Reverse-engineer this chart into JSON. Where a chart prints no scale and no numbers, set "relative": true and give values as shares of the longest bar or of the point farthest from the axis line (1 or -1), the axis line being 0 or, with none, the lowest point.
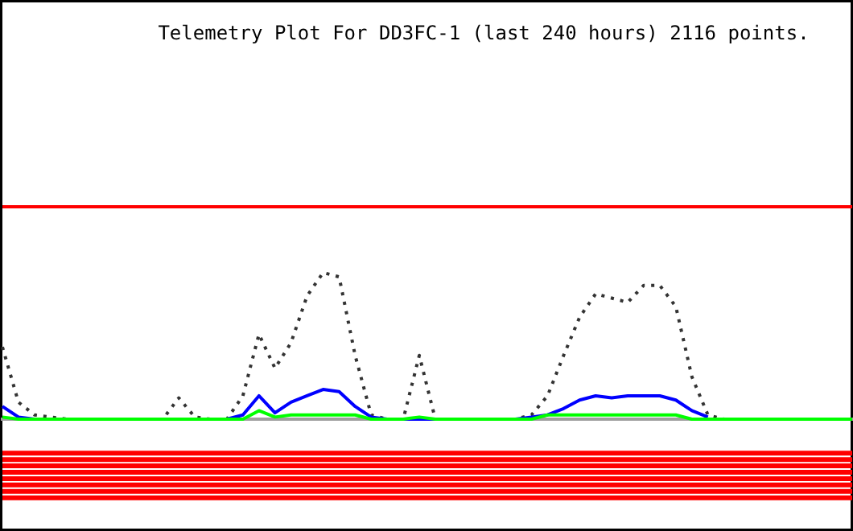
{
  "chart_data": {
    "type": "line",
    "title": "Telemetry Plot For DD3FC-1 (last 240 hours) 2116 points.",
    "relative": true,
    "categories": [
      null,
      null,
      null,
      null,
      null,
      null,
      null,
      null,
      null,
      null,
      null,
      null,
      null,
      null,
      null,
      null,
      null,
      null,
      null,
      null,
      null,
      null,
      null,
      null,
      null,
      null,
      null,
      null,
      null,
      null,
      null,
      null,
      null,
      null,
      null,
      null,
      null,
      null,
      null,
      null,
      null,
      null,
      null,
      null,
      null,
      null,
      null,
      null,
      null,
      null,
      null,
      null,
      null,
      null
    ],
    "series": [
      {
        "color": "#ff0000",
        "values": [
          1,
          1,
          1,
          1,
          1,
          1,
          1,
          1,
          1,
          1,
          1,
          1,
          1,
          1,
          1,
          1,
          1,
          1,
          1,
          1,
          1,
          1,
          1,
          1,
          1,
          1,
          1,
          1,
          1,
          1,
          1,
          1,
          1,
          1,
          1,
          1,
          1,
          1,
          1,
          1,
          1,
          1,
          1,
          1,
          1,
          1,
          1,
          1,
          1,
          1,
          1,
          1,
          1,
          1
        ]
      },
      {
        "line_style": "dotted",
        "color": "#333333",
        "values": [
          0.34,
          0.08,
          0.02,
          0.01,
          0,
          0,
          0,
          0,
          0,
          0,
          0,
          0.1,
          0.01,
          0,
          0,
          0.11,
          0.4,
          0.24,
          0.36,
          0.58,
          0.69,
          0.67,
          0.3,
          0.02,
          0,
          0,
          0.3,
          0,
          0,
          0,
          0,
          0,
          0,
          0.02,
          0.11,
          0.3,
          0.48,
          0.59,
          0.57,
          0.55,
          0.63,
          0.63,
          0.53,
          0.2,
          0.02,
          0,
          0,
          0,
          0,
          0,
          0,
          0,
          0,
          0
        ]
      },
      {
        "color": "#0000ff",
        "values": [
          0.06,
          0.01,
          0,
          0,
          0,
          0,
          0,
          0,
          0,
          0,
          0,
          0,
          0,
          0,
          0,
          0.02,
          0.11,
          0.03,
          0.08,
          0.11,
          0.14,
          0.13,
          0.06,
          0.01,
          0,
          0,
          0,
          0,
          0,
          0,
          0,
          0,
          0,
          0.01,
          0.02,
          0.05,
          0.09,
          0.11,
          0.1,
          0.11,
          0.11,
          0.11,
          0.09,
          0.04,
          0.01,
          null,
          null,
          null,
          null,
          null,
          null,
          null,
          null,
          null
        ]
      },
      {
        "color": "#00ff00",
        "values": [
          0.01,
          0,
          0,
          0,
          0,
          0,
          0,
          0,
          0,
          0,
          0,
          0,
          0,
          0,
          0,
          0,
          0.04,
          0.01,
          0.02,
          0.02,
          0.02,
          0.02,
          0.02,
          0,
          0,
          0,
          0.01,
          0,
          0,
          0,
          0,
          0,
          0,
          0,
          0.02,
          0.02,
          0.02,
          0.02,
          0.02,
          0.02,
          0.02,
          0.02,
          0.02,
          0,
          0,
          0,
          0,
          0,
          0,
          0,
          0,
          0,
          0,
          0
        ]
      },
      {
        "color": "#ff0000",
        "values": [
          -0.16,
          -0.16,
          -0.16,
          -0.16,
          -0.16,
          -0.16,
          -0.16,
          -0.16,
          -0.16,
          -0.16,
          -0.16,
          -0.16,
          -0.16,
          -0.16,
          -0.16,
          -0.16,
          -0.16,
          -0.16,
          -0.16,
          -0.16,
          -0.16,
          -0.16,
          -0.16,
          -0.16,
          -0.16,
          -0.16,
          -0.16,
          -0.16,
          -0.16,
          -0.16,
          -0.16,
          -0.16,
          -0.16,
          -0.16,
          -0.16,
          -0.16,
          -0.16,
          -0.16,
          -0.16,
          -0.16,
          -0.16,
          -0.16,
          -0.16,
          -0.16,
          -0.16,
          -0.16,
          -0.16,
          -0.16,
          -0.16,
          -0.16,
          -0.16,
          -0.16,
          -0.16,
          -0.16
        ]
      },
      {
        "color": "#ff0000",
        "values": [
          -0.19,
          -0.19,
          -0.19,
          -0.19,
          -0.19,
          -0.19,
          -0.19,
          -0.19,
          -0.19,
          -0.19,
          -0.19,
          -0.19,
          -0.19,
          -0.19,
          -0.19,
          -0.19,
          -0.19,
          -0.19,
          -0.19,
          -0.19,
          -0.19,
          -0.19,
          -0.19,
          -0.19,
          -0.19,
          -0.19,
          -0.19,
          -0.19,
          -0.19,
          -0.19,
          -0.19,
          -0.19,
          -0.19,
          -0.19,
          -0.19,
          -0.19,
          -0.19,
          -0.19,
          -0.19,
          -0.19,
          -0.19,
          -0.19,
          -0.19,
          -0.19,
          -0.19,
          -0.19,
          -0.19,
          -0.19,
          -0.19,
          -0.19,
          -0.19,
          -0.19,
          -0.19,
          -0.19
        ]
      },
      {
        "color": "#ff0000",
        "values": [
          -0.22,
          -0.22,
          -0.22,
          -0.22,
          -0.22,
          -0.22,
          -0.22,
          -0.22,
          -0.22,
          -0.22,
          -0.22,
          -0.22,
          -0.22,
          -0.22,
          -0.22,
          -0.22,
          -0.22,
          -0.22,
          -0.22,
          -0.22,
          -0.22,
          -0.22,
          -0.22,
          -0.22,
          -0.22,
          -0.22,
          -0.22,
          -0.22,
          -0.22,
          -0.22,
          -0.22,
          -0.22,
          -0.22,
          -0.22,
          -0.22,
          -0.22,
          -0.22,
          -0.22,
          -0.22,
          -0.22,
          -0.22,
          -0.22,
          -0.22,
          -0.22,
          -0.22,
          -0.22,
          -0.22,
          -0.22,
          -0.22,
          -0.22,
          -0.22,
          -0.22,
          -0.22,
          -0.22
        ]
      },
      {
        "color": "#ff0000",
        "values": [
          -0.25,
          -0.25,
          -0.25,
          -0.25,
          -0.25,
          -0.25,
          -0.25,
          -0.25,
          -0.25,
          -0.25,
          -0.25,
          -0.25,
          -0.25,
          -0.25,
          -0.25,
          -0.25,
          -0.25,
          -0.25,
          -0.25,
          -0.25,
          -0.25,
          -0.25,
          -0.25,
          -0.25,
          -0.25,
          -0.25,
          -0.25,
          -0.25,
          -0.25,
          -0.25,
          -0.25,
          -0.25,
          -0.25,
          -0.25,
          -0.25,
          -0.25,
          -0.25,
          -0.25,
          -0.25,
          -0.25,
          -0.25,
          -0.25,
          -0.25,
          -0.25,
          -0.25,
          -0.25,
          -0.25,
          -0.25,
          -0.25,
          -0.25,
          -0.25,
          -0.25,
          -0.25,
          -0.25
        ]
      },
      {
        "color": "#ff0000",
        "values": [
          -0.28,
          -0.28,
          -0.28,
          -0.28,
          -0.28,
          -0.28,
          -0.28,
          -0.28,
          -0.28,
          -0.28,
          -0.28,
          -0.28,
          -0.28,
          -0.28,
          -0.28,
          -0.28,
          -0.28,
          -0.28,
          -0.28,
          -0.28,
          -0.28,
          -0.28,
          -0.28,
          -0.28,
          -0.28,
          -0.28,
          -0.28,
          -0.28,
          -0.28,
          -0.28,
          -0.28,
          -0.28,
          -0.28,
          -0.28,
          -0.28,
          -0.28,
          -0.28,
          -0.28,
          -0.28,
          -0.28,
          -0.28,
          -0.28,
          -0.28,
          -0.28,
          -0.28,
          -0.28,
          -0.28,
          -0.28,
          -0.28,
          -0.28,
          -0.28,
          -0.28,
          -0.28,
          -0.28
        ]
      },
      {
        "color": "#ff0000",
        "values": [
          -0.31,
          -0.31,
          -0.31,
          -0.31,
          -0.31,
          -0.31,
          -0.31,
          -0.31,
          -0.31,
          -0.31,
          -0.31,
          -0.31,
          -0.31,
          -0.31,
          -0.31,
          -0.31,
          -0.31,
          -0.31,
          -0.31,
          -0.31,
          -0.31,
          -0.31,
          -0.31,
          -0.31,
          -0.31,
          -0.31,
          -0.31,
          -0.31,
          -0.31,
          -0.31,
          -0.31,
          -0.31,
          -0.31,
          -0.31,
          -0.31,
          -0.31,
          -0.31,
          -0.31,
          -0.31,
          -0.31,
          -0.31,
          -0.31,
          -0.31,
          -0.31,
          -0.31,
          -0.31,
          -0.31,
          -0.31,
          -0.31,
          -0.31,
          -0.31,
          -0.31,
          -0.31,
          -0.31
        ]
      },
      {
        "color": "#ff0000",
        "values": [
          -0.34,
          -0.34,
          -0.34,
          -0.34,
          -0.34,
          -0.34,
          -0.34,
          -0.34,
          -0.34,
          -0.34,
          -0.34,
          -0.34,
          -0.34,
          -0.34,
          -0.34,
          -0.34,
          -0.34,
          -0.34,
          -0.34,
          -0.34,
          -0.34,
          -0.34,
          -0.34,
          -0.34,
          -0.34,
          -0.34,
          -0.34,
          -0.34,
          -0.34,
          -0.34,
          -0.34,
          -0.34,
          -0.34,
          -0.34,
          -0.34,
          -0.34,
          -0.34,
          -0.34,
          -0.34,
          -0.34,
          -0.34,
          -0.34,
          -0.34,
          -0.34,
          -0.34,
          -0.34,
          -0.34,
          -0.34,
          -0.34,
          -0.34,
          -0.34,
          -0.34,
          -0.34,
          -0.34
        ]
      },
      {
        "color": "#ff0000",
        "values": [
          -0.37,
          -0.37,
          -0.37,
          -0.37,
          -0.37,
          -0.37,
          -0.37,
          -0.37,
          -0.37,
          -0.37,
          -0.37,
          -0.37,
          -0.37,
          -0.37,
          -0.37,
          -0.37,
          -0.37,
          -0.37,
          -0.37,
          -0.37,
          -0.37,
          -0.37,
          -0.37,
          -0.37,
          -0.37,
          -0.37,
          -0.37,
          -0.37,
          -0.37,
          -0.37,
          -0.37,
          -0.37,
          -0.37,
          -0.37,
          -0.37,
          -0.37,
          -0.37,
          -0.37,
          -0.37,
          -0.37,
          -0.37,
          -0.37,
          -0.37,
          -0.37,
          -0.37,
          -0.37,
          -0.37,
          -0.37,
          -0.37,
          -0.37,
          -0.37,
          -0.37,
          -0.37,
          -0.37
        ]
      }
    ]
  }
}
